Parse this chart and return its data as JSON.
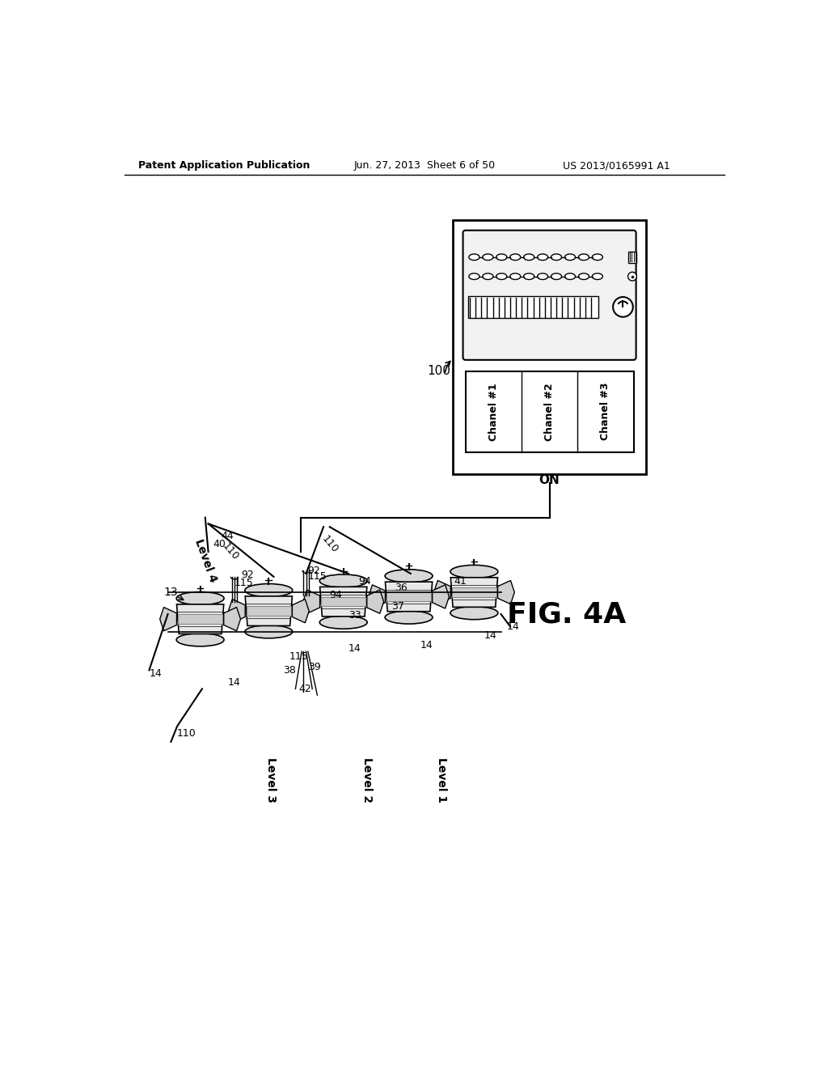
{
  "bg_color": "#ffffff",
  "header_left": "Patent Application Publication",
  "header_center": "Jun. 27, 2013  Sheet 6 of 50",
  "header_right": "US 2013/0165991 A1",
  "fig_label": "FIG. 4A",
  "device_label": "100",
  "channel_labels": [
    "Chanel #1",
    "Chanel #2",
    "Chanel #3"
  ],
  "on_label": "ON",
  "level_labels": [
    "Level 4",
    "Level 3",
    "Level 2",
    "Level 1"
  ]
}
